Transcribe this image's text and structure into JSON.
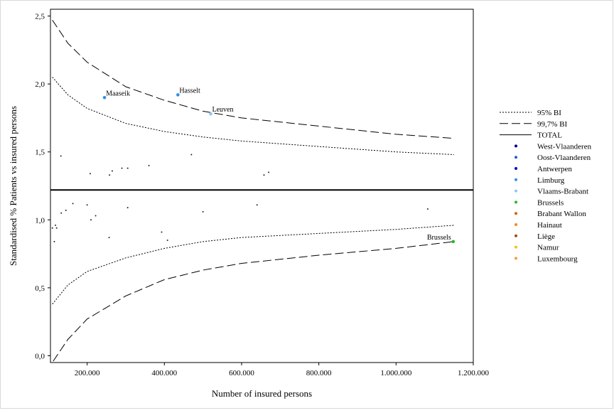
{
  "chart_data": {
    "type": "scatter",
    "subtype": "funnel plot",
    "xlabel": "Number of insured persons",
    "ylabel": "Standardised % Patients vs insured persons",
    "xlim": [
      105000,
      1200000
    ],
    "ylim": [
      -0.05,
      2.55
    ],
    "x_ticks": [
      {
        "value": 200000,
        "label": "200.000"
      },
      {
        "value": 400000,
        "label": "400.000"
      },
      {
        "value": 600000,
        "label": "600.000"
      },
      {
        "value": 800000,
        "label": "800.000"
      },
      {
        "value": 1000000,
        "label": "1.000.000"
      },
      {
        "value": 1200000,
        "label": "1.200.000"
      }
    ],
    "y_ticks": [
      {
        "value": 0.0,
        "label": "0,0"
      },
      {
        "value": 0.5,
        "label": "0,5"
      },
      {
        "value": 1.0,
        "label": "1,0"
      },
      {
        "value": 1.5,
        "label": "1,5"
      },
      {
        "value": 2.0,
        "label": "2,0"
      },
      {
        "value": 2.5,
        "label": "2,5"
      }
    ],
    "total_line": 1.22,
    "limits": {
      "ci95": {
        "label": "95% BI",
        "upper": [
          [
            110000,
            2.05
          ],
          [
            150000,
            1.92
          ],
          [
            200000,
            1.82
          ],
          [
            300000,
            1.71
          ],
          [
            400000,
            1.65
          ],
          [
            500000,
            1.61
          ],
          [
            600000,
            1.58
          ],
          [
            800000,
            1.54
          ],
          [
            1000000,
            1.5
          ],
          [
            1150000,
            1.48
          ]
        ],
        "lower": [
          [
            110000,
            0.38
          ],
          [
            150000,
            0.52
          ],
          [
            200000,
            0.62
          ],
          [
            300000,
            0.72
          ],
          [
            400000,
            0.79
          ],
          [
            500000,
            0.84
          ],
          [
            600000,
            0.87
          ],
          [
            800000,
            0.9
          ],
          [
            1000000,
            0.93
          ],
          [
            1150000,
            0.96
          ]
        ]
      },
      "ci997": {
        "label": "99,7% BI",
        "upper": [
          [
            110000,
            2.47
          ],
          [
            150000,
            2.3
          ],
          [
            200000,
            2.16
          ],
          [
            300000,
            1.98
          ],
          [
            400000,
            1.88
          ],
          [
            500000,
            1.8
          ],
          [
            600000,
            1.75
          ],
          [
            800000,
            1.69
          ],
          [
            1000000,
            1.63
          ],
          [
            1150000,
            1.6
          ]
        ],
        "lower": [
          [
            112000,
            -0.04
          ],
          [
            150000,
            0.12
          ],
          [
            200000,
            0.27
          ],
          [
            300000,
            0.44
          ],
          [
            400000,
            0.56
          ],
          [
            500000,
            0.63
          ],
          [
            600000,
            0.68
          ],
          [
            800000,
            0.74
          ],
          [
            1000000,
            0.79
          ],
          [
            1150000,
            0.84
          ]
        ]
      }
    },
    "legend": {
      "placement": "right",
      "lines": [
        {
          "key": "ci95",
          "label": "95% BI",
          "style": "dotted"
        },
        {
          "key": "ci997",
          "label": "99,7% BI",
          "style": "dashed"
        },
        {
          "key": "total",
          "label": "TOTAL",
          "style": "solid"
        }
      ],
      "provinces": [
        {
          "label": "West-Vlaanderen",
          "color": "#000080"
        },
        {
          "label": "Oost-Vlaanderen",
          "color": "#1f5fd8"
        },
        {
          "label": "Antwerpen",
          "color": "#0000d0"
        },
        {
          "label": "Limburg",
          "color": "#2e8ee8"
        },
        {
          "label": "Vlaams-Brabant",
          "color": "#8fc6f2"
        },
        {
          "label": "Brussels",
          "color": "#22bb22"
        },
        {
          "label": "Brabant Wallon",
          "color": "#d2601c"
        },
        {
          "label": "Hainaut",
          "color": "#f08a20"
        },
        {
          "label": "Liège",
          "color": "#a8481c"
        },
        {
          "label": "Namur",
          "color": "#f0c020"
        },
        {
          "label": "Luxembourg",
          "color": "#f0a040"
        }
      ]
    },
    "highlighted_points": [
      {
        "label": "Maaseik",
        "x": 245000,
        "y": 1.9,
        "color": "#2e8ee8"
      },
      {
        "label": "Hasselt",
        "x": 435000,
        "y": 1.92,
        "color": "#2e8ee8"
      },
      {
        "label": "Leuven",
        "x": 520000,
        "y": 1.78,
        "color": "#8fc6f2"
      },
      {
        "label": "Brussels",
        "x": 1148000,
        "y": 0.84,
        "color": "#22bb22"
      }
    ],
    "points": [
      {
        "x": 132000,
        "y": 1.47
      },
      {
        "x": 208000,
        "y": 1.34
      },
      {
        "x": 258000,
        "y": 1.33
      },
      {
        "x": 265000,
        "y": 1.36
      },
      {
        "x": 290000,
        "y": 1.38
      },
      {
        "x": 305000,
        "y": 1.38
      },
      {
        "x": 360000,
        "y": 1.4
      },
      {
        "x": 470000,
        "y": 1.48
      },
      {
        "x": 658000,
        "y": 1.33
      },
      {
        "x": 670000,
        "y": 1.35
      },
      {
        "x": 110000,
        "y": 0.94
      },
      {
        "x": 118000,
        "y": 0.96
      },
      {
        "x": 121000,
        "y": 0.94
      },
      {
        "x": 115000,
        "y": 0.84
      },
      {
        "x": 133000,
        "y": 1.05
      },
      {
        "x": 145000,
        "y": 1.07
      },
      {
        "x": 163000,
        "y": 1.12
      },
      {
        "x": 200000,
        "y": 1.11
      },
      {
        "x": 210000,
        "y": 1.0
      },
      {
        "x": 222000,
        "y": 1.03
      },
      {
        "x": 257000,
        "y": 0.87
      },
      {
        "x": 305000,
        "y": 1.09
      },
      {
        "x": 393000,
        "y": 0.91
      },
      {
        "x": 408000,
        "y": 0.85
      },
      {
        "x": 500000,
        "y": 1.06
      },
      {
        "x": 640000,
        "y": 1.11
      },
      {
        "x": 1082000,
        "y": 1.08
      }
    ]
  }
}
